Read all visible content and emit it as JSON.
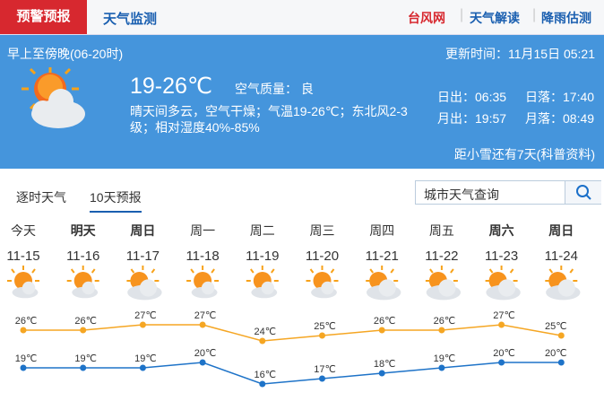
{
  "nav": {
    "tabs": [
      "预警预报",
      "天气监测"
    ],
    "links": [
      "台风网",
      "天气解读",
      "降雨估测"
    ]
  },
  "current": {
    "period": "早上至傍晚(06-20时)",
    "updated": "更新时间：11月15日 05:21",
    "temp": "19-26℃",
    "air": "空气质量： 良",
    "desc": [
      "晴天间多云，空气干燥；气温19-26℃；东北风2-3",
      "级；相对湿度40%-85%"
    ],
    "sun": [
      "日出：06:35",
      "日落：17:40",
      "月出：19:57",
      "月落：08:49"
    ],
    "note": "距小雪还有7天(科普资料)"
  },
  "tabs": [
    "逐时天气",
    "10天预报"
  ],
  "search": {
    "placeholder": "城市天气查询"
  },
  "chart_data": {
    "type": "line",
    "categories": [
      "今天",
      "明天",
      "周日",
      "周一",
      "周二",
      "周三",
      "周四",
      "周五",
      "周六",
      "周日"
    ],
    "bold": [
      false,
      true,
      true,
      false,
      false,
      false,
      false,
      false,
      true,
      true
    ],
    "dates": [
      "11-15",
      "11-16",
      "11-17",
      "11-18",
      "11-19",
      "11-20",
      "11-21",
      "11-22",
      "11-23",
      "11-24"
    ],
    "icons": [
      "sun",
      "sun",
      "cloud",
      "sun",
      "sun",
      "sun",
      "cloud",
      "cloud",
      "cloud",
      "cloud"
    ],
    "series": [
      {
        "color": "#f5a623",
        "values": [
          26,
          26,
          27,
          27,
          24,
          25,
          26,
          26,
          27,
          25
        ],
        "value_labels": [
          "26℃",
          "26℃",
          "27℃",
          "27℃",
          "24℃",
          "25℃",
          "26℃",
          "26℃",
          "27℃",
          "25℃"
        ]
      },
      {
        "color": "#1e73c8",
        "values": [
          19,
          19,
          19,
          20,
          16,
          17,
          18,
          19,
          20,
          20
        ],
        "value_labels": [
          "19℃",
          "19℃",
          "19℃",
          "20℃",
          "16℃",
          "17℃",
          "18℃",
          "19℃",
          "20℃",
          "20℃"
        ]
      }
    ]
  }
}
